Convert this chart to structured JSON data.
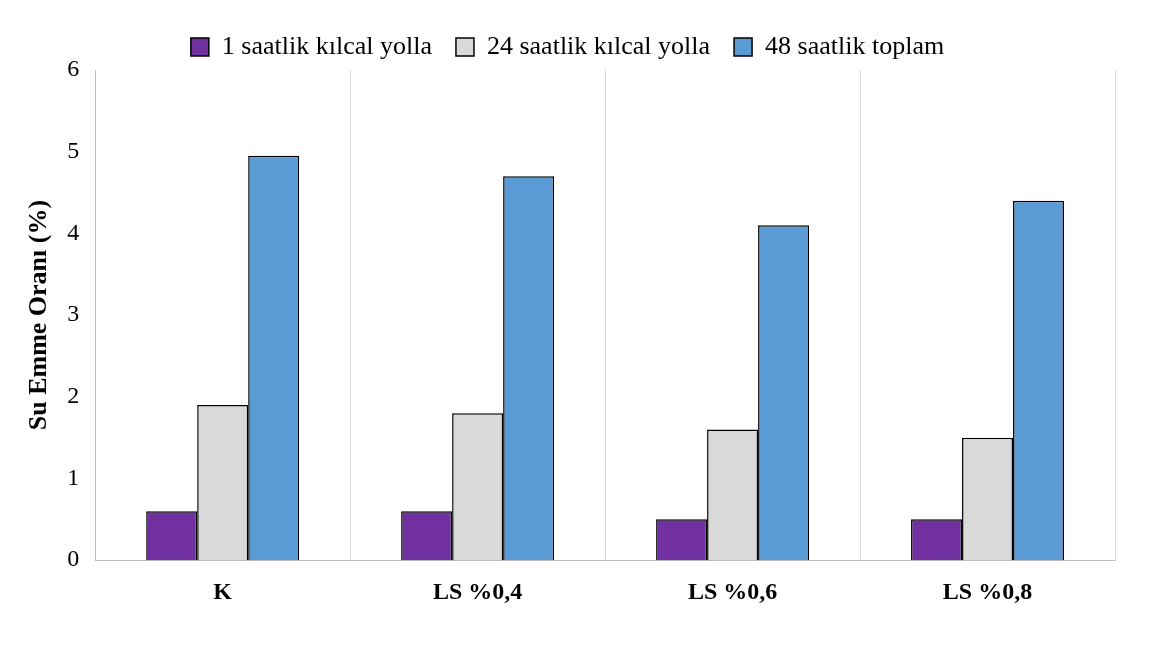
{
  "chart_data": {
    "type": "bar",
    "ylabel": "Su Emme Oranı (%)",
    "categories": [
      "K",
      "LS %0,4",
      "LS %0,6",
      "LS %0,8"
    ],
    "series": [
      {
        "name": "1 saatlik kılcal yolla",
        "color": "#7030a0",
        "values": [
          0.6,
          0.6,
          0.5,
          0.5
        ]
      },
      {
        "name": "24 saatlik kılcal yolla",
        "color": "#d9d9d9",
        "values": [
          1.9,
          1.8,
          1.6,
          1.5
        ]
      },
      {
        "name": "48 saatlik toplam",
        "color": "#5b9bd5",
        "values": [
          4.95,
          4.7,
          4.1,
          4.4
        ]
      }
    ],
    "ylim": [
      0,
      6
    ],
    "yticks": [
      0,
      1,
      2,
      3,
      4,
      5,
      6
    ],
    "grid": "x",
    "legend": "top"
  }
}
